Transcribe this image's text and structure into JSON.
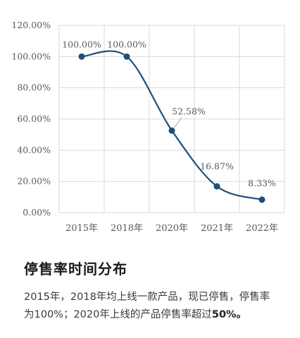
{
  "chart_data": {
    "type": "line",
    "categories": [
      "2015年",
      "2018年",
      "2020年",
      "2021年",
      "2022年"
    ],
    "values": [
      100.0,
      100.0,
      52.58,
      16.87,
      8.33
    ],
    "data_labels": [
      "100.00%",
      "100.00%",
      "52.58%",
      "16.87%",
      "8.33%"
    ],
    "y_ticks": [
      "0.00%",
      "20.00%",
      "40.00%",
      "60.00%",
      "80.00%",
      "100.00%",
      "120.00%"
    ],
    "ylim": [
      0,
      120
    ],
    "title": "",
    "xlabel": "",
    "ylabel": "",
    "grid": true,
    "line_color": "#1f4e79",
    "grid_color": "#d9d9d9"
  },
  "section": {
    "title": "停售率时间分布",
    "text_prefix": "2015年，2018年均上线一款产品，现已停售，停售率为100%；2020年上线的产品停售率超过",
    "text_bold": "50%。"
  }
}
